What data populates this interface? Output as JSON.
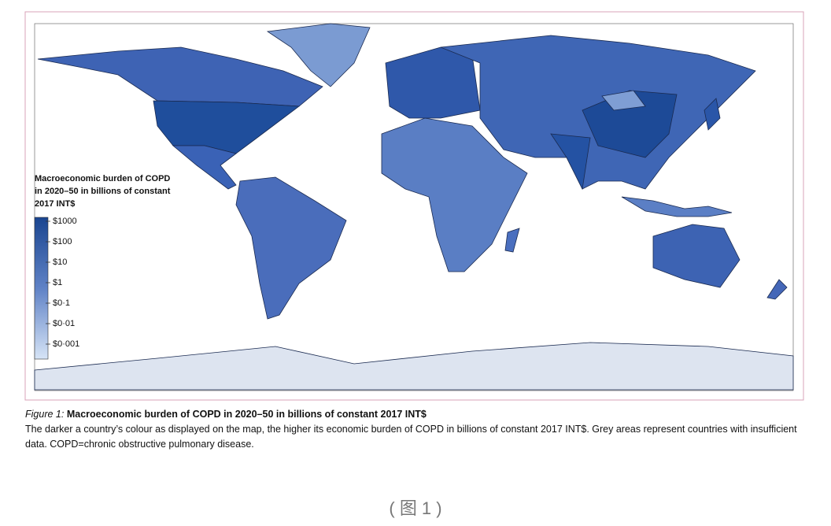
{
  "legend": {
    "title_lines": [
      "Macroeconomic burden of COPD",
      "in 2020–50 in billions of constant",
      "2017 INT$"
    ],
    "ticks": [
      "$1000",
      "$100",
      "$10",
      "$1",
      "$0·1",
      "$0·01",
      "$0·001"
    ]
  },
  "caption": {
    "label": "Figure 1:",
    "title": "Macroeconomic burden of COPD in 2020–50 in billions of constant 2017 INT$",
    "text": "The darker a country’s colour as displayed on the map, the higher its economic burden of COPD in billions of constant 2017 INT$. Grey areas represent countries with insufficient data. COPD=chronic obstructive pulmonary disease."
  },
  "footer": "( 图 1 )"
}
